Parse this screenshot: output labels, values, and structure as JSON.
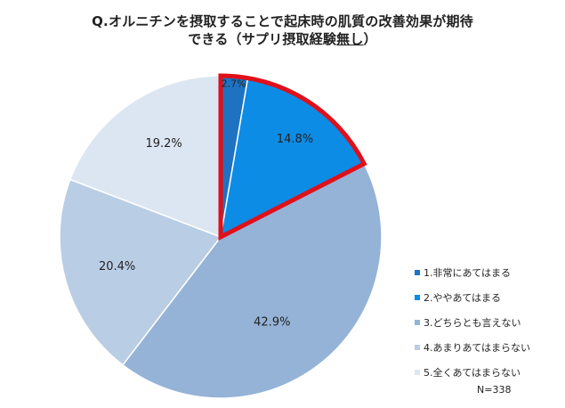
{
  "chart_data": {
    "type": "pie",
    "title_line1": "Q.オルニチンを摂取することで起床時の肌質の改善効果が期待",
    "title_line2_pre": "できる（サプリ摂取経験",
    "title_line2_underlined": "無し",
    "title_line2_post": "）",
    "categories": [
      "1.非常にあてはまる",
      "2.ややあてはまる",
      "3.どちらとも言えない",
      "4.あまりあてはまらない",
      "5.全くあてはまらない"
    ],
    "values": [
      2.7,
      14.8,
      42.9,
      20.4,
      19.2
    ],
    "value_labels": [
      "2.7%",
      "14.8%",
      "42.9%",
      "20.4%",
      "19.2%"
    ],
    "colors": [
      "#1f72c2",
      "#0d8ce6",
      "#95b3d7",
      "#b9cde5",
      "#dce6f2"
    ],
    "highlight": {
      "slices": [
        0,
        1
      ],
      "color": "#e0101a"
    },
    "start_angle_deg": 0,
    "direction": "clockwise",
    "legend_position": "right",
    "note": "N=338"
  }
}
